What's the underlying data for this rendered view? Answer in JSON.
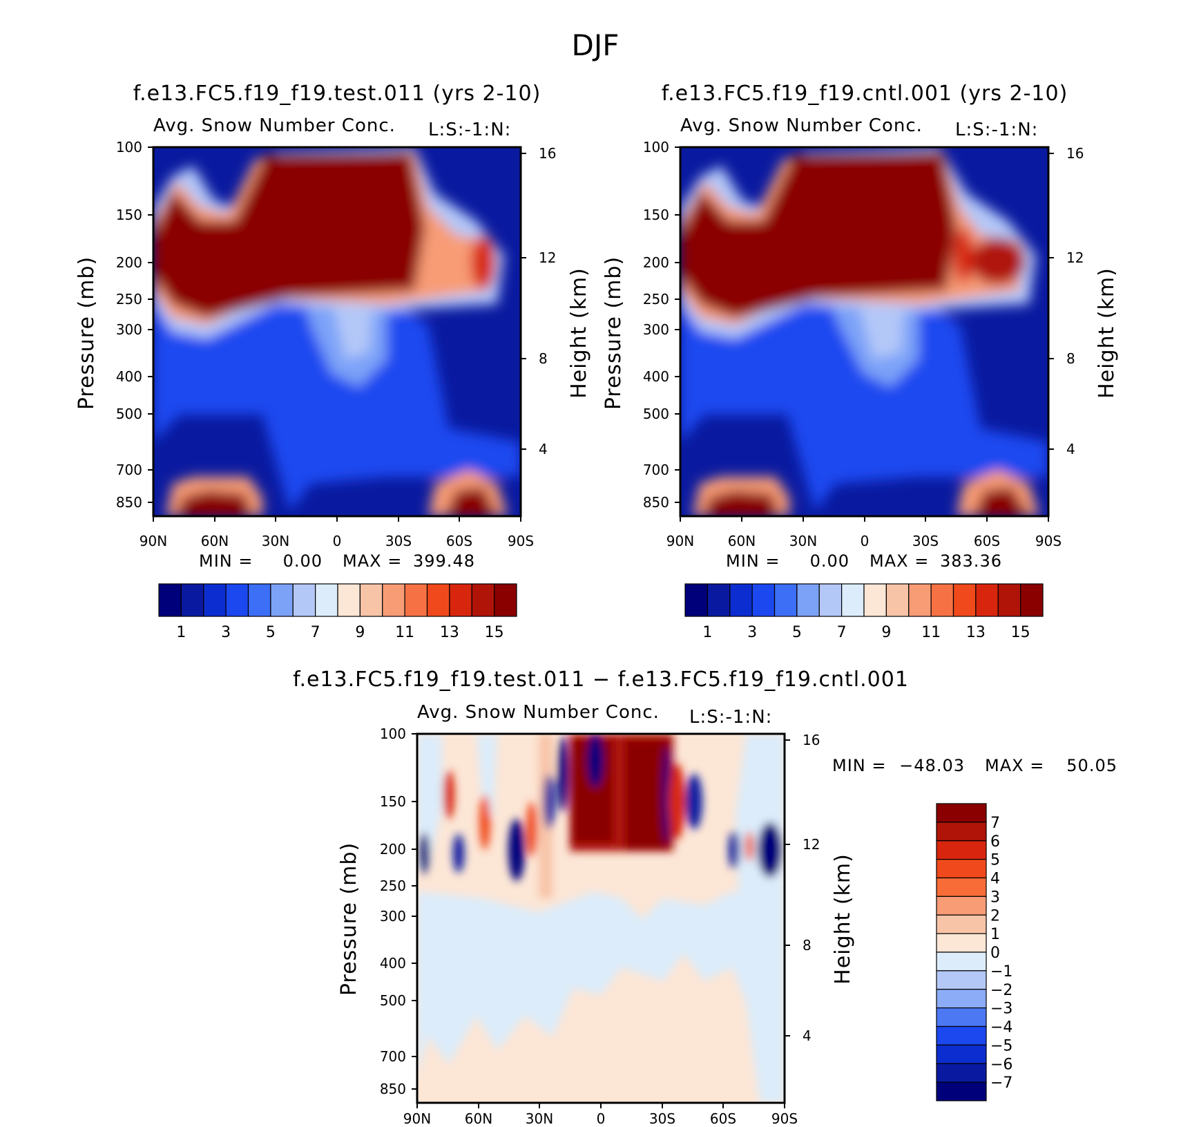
{
  "figure_title": "DJF",
  "chart_data": [
    {
      "type": "contour",
      "panel": "test",
      "title": "f.e13.FC5.f19_f19.test.011 (yrs 2-10)",
      "subtitle": "Avg. Snow Number Conc.",
      "units": "L:S:-1:N:",
      "xlabel": "",
      "ylabel": "Pressure (mb)",
      "ylabel_right": "Height (km)",
      "x_ticks": [
        "90N",
        "60N",
        "30N",
        "0",
        "30S",
        "60S",
        "90S"
      ],
      "y_ticks": [
        "100",
        "150",
        "200",
        "250",
        "300",
        "400",
        "500",
        "700",
        "850"
      ],
      "y_ticks_right": [
        "16",
        "12",
        "8",
        "4"
      ],
      "min_label": "MIN =",
      "min_value": "0.00",
      "max_label": "MAX =",
      "max_value": "399.48",
      "colorbar_labels": [
        "1",
        "3",
        "5",
        "7",
        "9",
        "11",
        "13",
        "15"
      ]
    },
    {
      "type": "contour",
      "panel": "control",
      "title": "f.e13.FC5.f19_f19.cntl.001 (yrs 2-10)",
      "subtitle": "Avg. Snow Number Conc.",
      "units": "L:S:-1:N:",
      "xlabel": "",
      "ylabel": "Pressure (mb)",
      "ylabel_right": "Height (km)",
      "x_ticks": [
        "90N",
        "60N",
        "30N",
        "0",
        "30S",
        "60S",
        "90S"
      ],
      "y_ticks": [
        "100",
        "150",
        "200",
        "250",
        "300",
        "400",
        "500",
        "700",
        "850"
      ],
      "y_ticks_right": [
        "16",
        "12",
        "8",
        "4"
      ],
      "min_label": "MIN =",
      "min_value": "0.00",
      "max_label": "MAX =",
      "max_value": "383.36",
      "colorbar_labels": [
        "1",
        "3",
        "5",
        "7",
        "9",
        "11",
        "13",
        "15"
      ]
    },
    {
      "type": "contour",
      "panel": "difference",
      "title": "f.e13.FC5.f19_f19.test.011 − f.e13.FC5.f19_f19.cntl.001",
      "subtitle": "Avg. Snow Number Conc.",
      "units": "L:S:-1:N:",
      "xlabel": "",
      "ylabel": "Pressure (mb)",
      "ylabel_right": "Height (km)",
      "x_ticks": [
        "90N",
        "60N",
        "30N",
        "0",
        "30S",
        "60S",
        "90S"
      ],
      "y_ticks": [
        "100",
        "150",
        "200",
        "250",
        "300",
        "400",
        "500",
        "700",
        "850"
      ],
      "y_ticks_right": [
        "16",
        "12",
        "8",
        "4"
      ],
      "min_label": "MIN =",
      "min_value": "−48.03",
      "max_label": "MAX =",
      "max_value": "50.05",
      "colorbar_labels": [
        "7",
        "6",
        "5",
        "4",
        "3",
        "2",
        "1",
        "0",
        "−1",
        "−2",
        "−3",
        "−4",
        "−5",
        "−6",
        "−7"
      ]
    }
  ],
  "colors": {
    "full": [
      "#00007a",
      "#0a1aa0",
      "#0c2ed0",
      "#1c48f0",
      "#3c6ef6",
      "#7ca2f8",
      "#b4c8f8",
      "#dcecfa",
      "#fce6d6",
      "#f8c4a8",
      "#f89c76",
      "#f67244",
      "#f04a1c",
      "#d8260e",
      "#b01408",
      "#8a0000"
    ],
    "diff": [
      "#8a0000",
      "#b01408",
      "#d8260e",
      "#f04a1c",
      "#f86c38",
      "#f89c76",
      "#f8c4a8",
      "#fce6d6",
      "#dcecfa",
      "#b4c8f8",
      "#8cacf8",
      "#4c78f4",
      "#1c48f0",
      "#0c2ed0",
      "#0a1aa0",
      "#00007a"
    ]
  }
}
